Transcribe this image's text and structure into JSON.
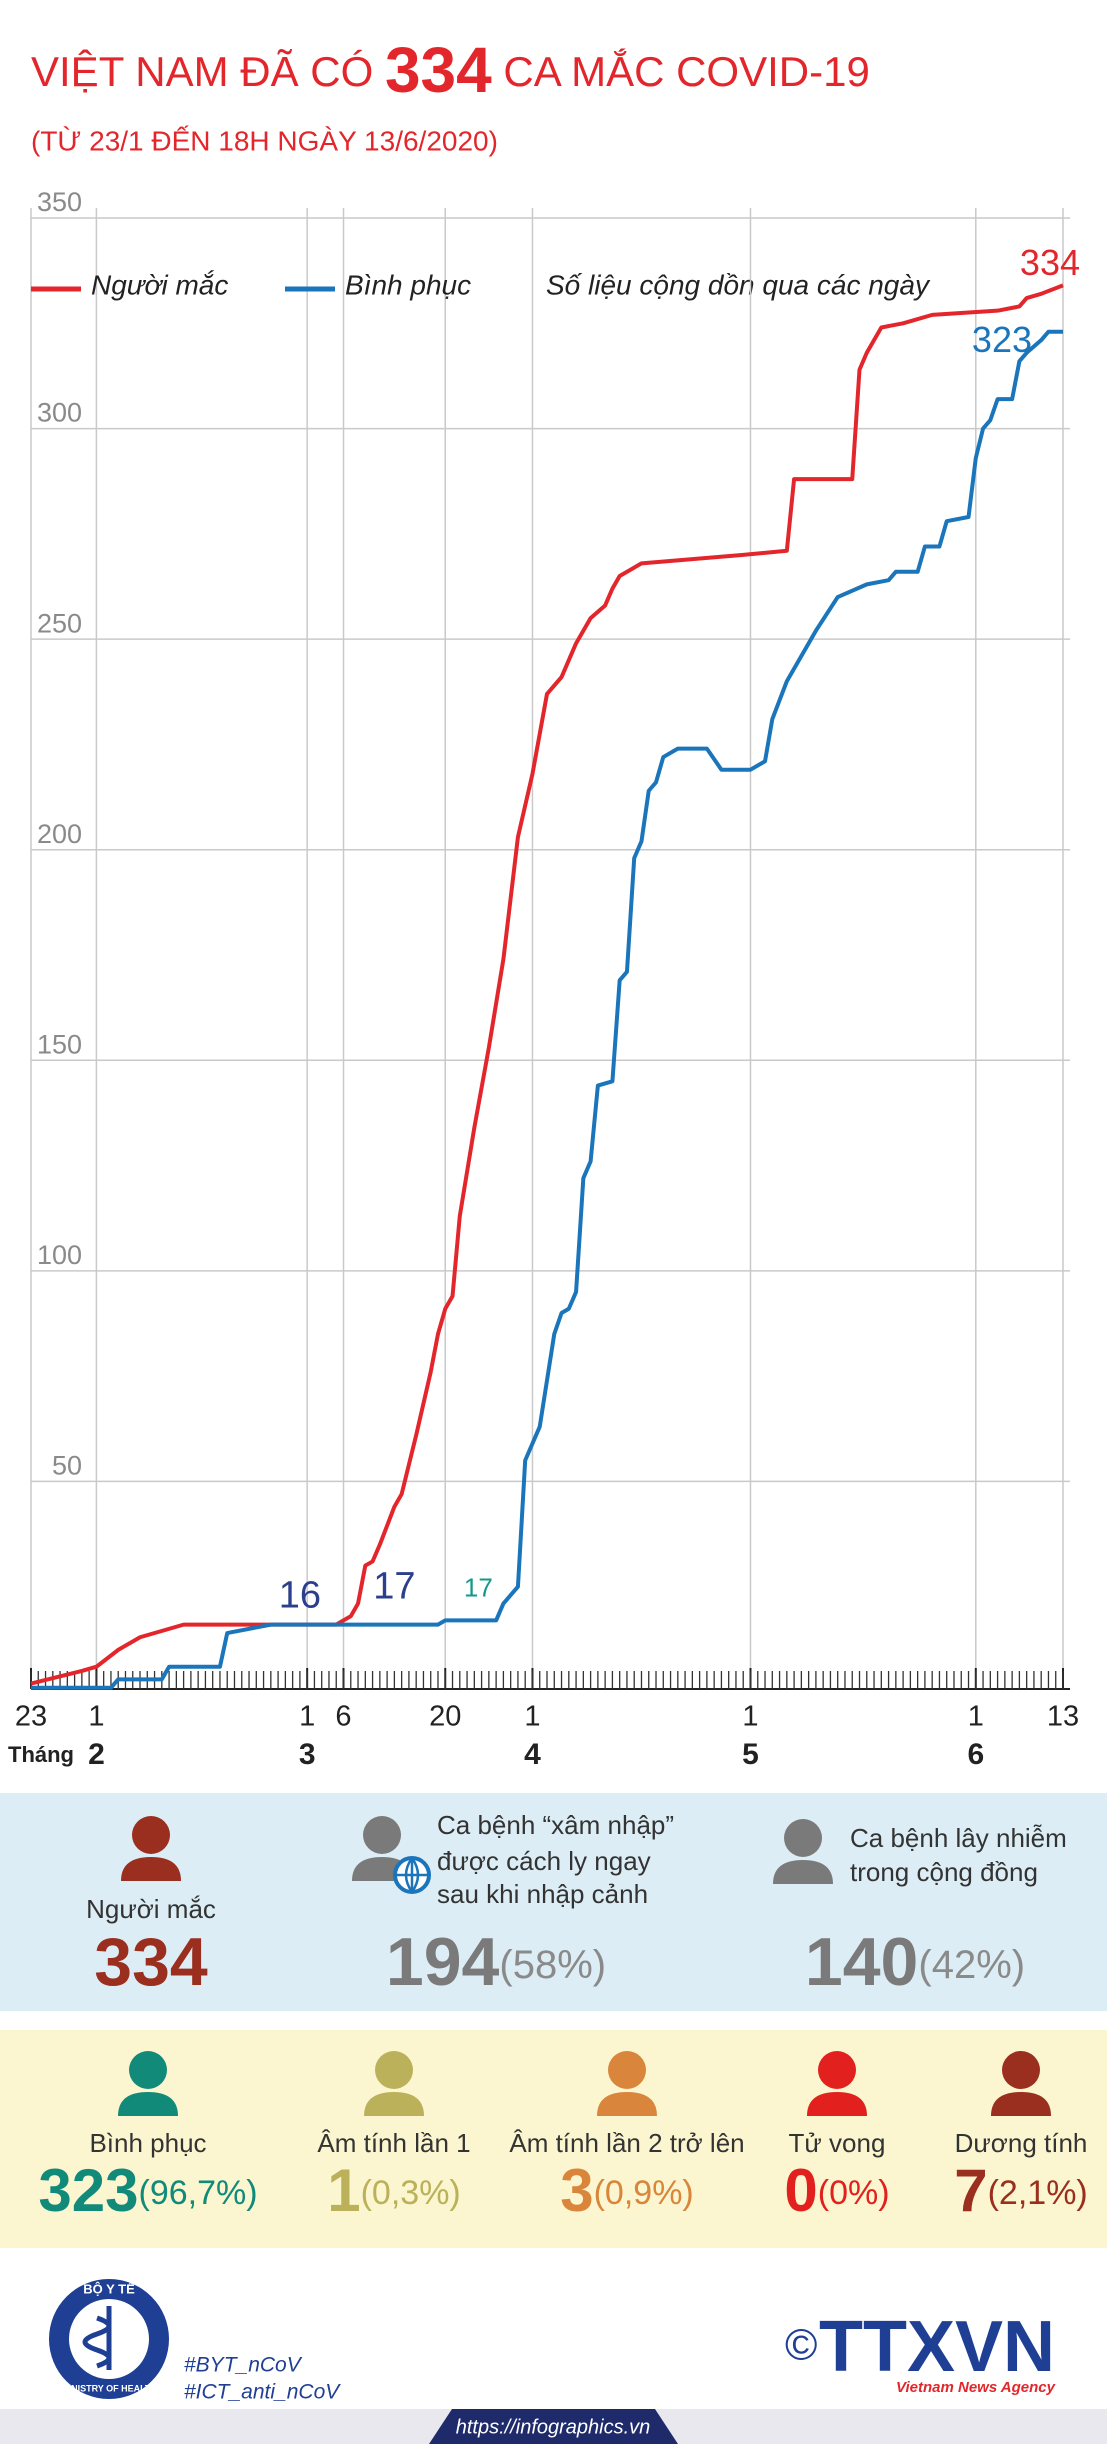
{
  "chart_data": {
    "type": "line",
    "title_parts": [
      "VIỆT NAM ĐÃ CÓ ",
      "334",
      " CA MẮC COVID-19"
    ],
    "subtitle": "(TỪ 23/1 ĐẾN 18H NGÀY 13/6/2020)",
    "note": "Số liệu cộng dồn qua các ngày",
    "xlim": [
      "23/1",
      "13/6"
    ],
    "xticks": [
      {
        "value": "23/1",
        "label": "23"
      },
      {
        "value": "1/2",
        "label": "1"
      },
      {
        "value": "1/3",
        "label": "1"
      },
      {
        "value": "6/3",
        "label": "6"
      },
      {
        "value": "20/3",
        "label": "20"
      },
      {
        "value": "1/4",
        "label": "1"
      },
      {
        "value": "1/5",
        "label": "1"
      },
      {
        "value": "1/6",
        "label": "1"
      },
      {
        "value": "13/6",
        "label": "13"
      }
    ],
    "month_prefix": "Tháng",
    "months": [
      {
        "value": "1/2",
        "label": "2"
      },
      {
        "value": "1/3",
        "label": "3"
      },
      {
        "value": "1/4",
        "label": "4"
      },
      {
        "value": "1/5",
        "label": "5"
      },
      {
        "value": "1/6",
        "label": "6"
      }
    ],
    "ylim": [
      0,
      350
    ],
    "yticks": [
      50,
      100,
      150,
      200,
      250,
      300,
      350
    ],
    "grid": true,
    "series": [
      {
        "name": "Người mắc",
        "color": "#e3262b",
        "x": [
          "23/1",
          "30/1",
          "1/2",
          "4/2",
          "7/2",
          "13/2",
          "5/3",
          "6/3",
          "7/3",
          "8/3",
          "9/3",
          "10/3",
          "11/3",
          "13/3",
          "14/3",
          "16/3",
          "18/3",
          "19/3",
          "20/3",
          "21/3",
          "22/3",
          "24/3",
          "26/3",
          "28/3",
          "30/3",
          "1/4",
          "3/4",
          "5/4",
          "7/4",
          "9/4",
          "11/4",
          "12/4",
          "13/4",
          "16/4",
          "30/4",
          "6/5",
          "7/5",
          "15/5",
          "16/5",
          "17/5",
          "19/5",
          "22/5",
          "26/5",
          "4/6",
          "7/6",
          "8/6",
          "10/6",
          "13/6"
        ],
        "values": [
          2,
          5,
          6,
          10,
          13,
          16,
          16,
          17,
          18,
          21,
          30,
          31,
          35,
          44,
          47,
          61,
          76,
          85,
          91,
          94,
          113,
          134,
          153,
          174,
          203,
          218,
          237,
          241,
          249,
          255,
          258,
          262,
          265,
          268,
          270,
          271,
          288,
          288,
          314,
          318,
          324,
          325,
          327,
          328,
          329,
          331,
          332,
          334
        ]
      },
      {
        "name": "Bình phục",
        "color": "#1a75bb",
        "x": [
          "23/1",
          "3/2",
          "4/2",
          "10/2",
          "11/2",
          "18/2",
          "19/2",
          "25/2",
          "19/3",
          "20/3",
          "27/3",
          "28/3",
          "30/3",
          "31/3",
          "2/4",
          "4/4",
          "5/4",
          "6/4",
          "7/4",
          "8/4",
          "9/4",
          "10/4",
          "12/4",
          "13/4",
          "14/4",
          "15/4",
          "16/4",
          "17/4",
          "18/4",
          "19/4",
          "21/4",
          "25/4",
          "27/4",
          "1/5",
          "3/5",
          "4/5",
          "6/5",
          "9/5",
          "10/5",
          "13/5",
          "17/5",
          "20/5",
          "21/5",
          "24/5",
          "25/5",
          "27/5",
          "28/5",
          "31/5",
          "1/6",
          "2/6",
          "3/6",
          "4/6",
          "6/6",
          "7/6",
          "8/6",
          "10/6",
          "11/6",
          "13/6"
        ],
        "values": [
          1,
          1,
          3,
          3,
          6,
          6,
          14,
          16,
          16,
          17,
          17,
          21,
          25,
          55,
          63,
          85,
          90,
          91,
          95,
          122,
          126,
          144,
          145,
          169,
          171,
          198,
          202,
          214,
          216,
          222,
          224,
          224,
          219,
          219,
          221,
          231,
          240,
          249,
          252,
          260,
          263,
          264,
          266,
          266,
          272,
          272,
          278,
          279,
          293,
          300,
          302,
          307,
          307,
          316,
          318,
          321,
          323,
          323
        ]
      }
    ],
    "annotations": [
      {
        "text": "16",
        "x": "29/2",
        "y": 16,
        "color": "#2b3f8c"
      },
      {
        "text": "17",
        "x": "13/3",
        "y": 17,
        "color": "#2b3f8c"
      },
      {
        "text": "17",
        "x": "24/3",
        "y": 17,
        "color": "#12998a"
      },
      {
        "text": "334",
        "x": "13/6",
        "y": 334,
        "color": "#e3262b"
      },
      {
        "text": "323",
        "x": "13/6",
        "y": 323,
        "color": "#1a75bb"
      }
    ]
  },
  "summary": [
    {
      "label": [
        "Người mắc"
      ],
      "value": 334,
      "color": "#9a2e1f"
    },
    {
      "label": [
        "Ca bệnh “xâm nhập”",
        "được cách ly ngay",
        "sau khi nhập cảnh"
      ],
      "value": 194,
      "percent": "(58%)",
      "color": "#7a7a7a"
    },
    {
      "label": [
        "Ca bệnh lây nhiễm",
        "trong cộng đồng"
      ],
      "value": 140,
      "percent": "(42%)",
      "color": "#7a7a7a"
    }
  ],
  "outcomes": [
    {
      "label": "Bình phục",
      "value": 323,
      "percent": "(96,7%)",
      "color": "#128a7a"
    },
    {
      "label": "Âm tính lần 1",
      "value": 1,
      "percent": "(0,3%)",
      "color": "#bbb15a"
    },
    {
      "label": "Âm tính lần 2 trở lên",
      "value": 3,
      "percent": "(0,9%)",
      "color": "#d9853b"
    },
    {
      "label": "Tử vong",
      "value": 0,
      "percent": "(0%)",
      "color": "#e2211f"
    },
    {
      "label": "Dương tính",
      "value": 7,
      "percent": "(2,1%)",
      "color": "#9a2e1f"
    }
  ],
  "footer": {
    "logo_top": "BỘ Y TẾ",
    "logo_bottom": "MINISTRY OF HEALTH",
    "hashtags": [
      "#BYT_nCoV",
      "#ICT_anti_nCoV"
    ],
    "copyright": "©",
    "agency": "TTXVN",
    "agency_sub": "Vietnam News Agency",
    "url": "https://infographics.vn"
  }
}
